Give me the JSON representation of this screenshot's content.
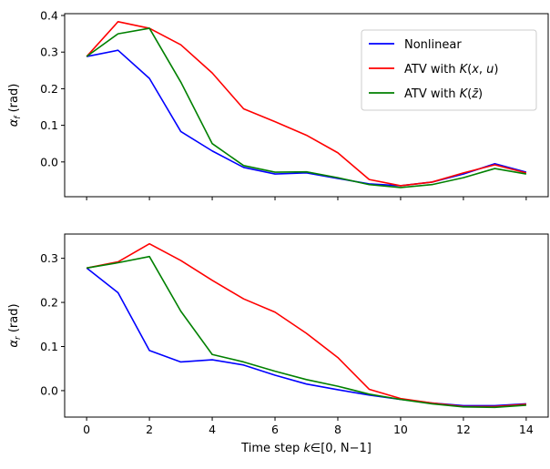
{
  "chart_data": [
    {
      "type": "line",
      "ylabel_main": "α",
      "ylabel_sub": "f",
      "ylabel_unit": " (rad)",
      "xlim": [
        -0.7,
        14.7
      ],
      "ylim": [
        -0.095,
        0.405
      ],
      "x": [
        0,
        1,
        2,
        3,
        4,
        5,
        6,
        7,
        8,
        9,
        10,
        11,
        12,
        13,
        14
      ],
      "xticks": [
        "0",
        "2",
        "4",
        "6",
        "8",
        "10",
        "12",
        "14"
      ],
      "yticks": [
        "0.0",
        "0.1",
        "0.2",
        "0.3",
        "0.4"
      ],
      "ytick_values": [
        0.0,
        0.1,
        0.2,
        0.3,
        0.4
      ],
      "legend_position": "upper right",
      "series": [
        {
          "name_parts": [
            "Nonlinear"
          ],
          "color": "#0000ff",
          "values": [
            0.288,
            0.305,
            0.228,
            0.083,
            0.03,
            -0.015,
            -0.033,
            -0.03,
            -0.045,
            -0.06,
            -0.065,
            -0.055,
            -0.033,
            -0.005,
            -0.028
          ]
        },
        {
          "name_parts": [
            "ATV with ",
            "K",
            "(",
            "x",
            ", ",
            "u",
            ")"
          ],
          "color": "#ff0000",
          "values": [
            0.288,
            0.383,
            0.365,
            0.32,
            0.243,
            0.145,
            0.11,
            0.073,
            0.025,
            -0.048,
            -0.065,
            -0.055,
            -0.03,
            -0.008,
            -0.03
          ]
        },
        {
          "name_parts": [
            "ATV with ",
            "K",
            "(",
            "z̄",
            ")"
          ],
          "color": "#008000",
          "values": [
            0.288,
            0.35,
            0.365,
            0.218,
            0.05,
            -0.01,
            -0.028,
            -0.027,
            -0.043,
            -0.062,
            -0.07,
            -0.062,
            -0.043,
            -0.018,
            -0.033
          ]
        }
      ]
    },
    {
      "type": "line",
      "ylabel_main": "α",
      "ylabel_sub": "r",
      "ylabel_unit": " (rad)",
      "xlabel_prefix": "Time step ",
      "xlabel_var": "k",
      "xlabel_mid": "∈",
      "xlabel_range": "[0, N−1]",
      "xlim": [
        -0.7,
        14.7
      ],
      "ylim": [
        -0.06,
        0.355
      ],
      "x": [
        0,
        1,
        2,
        3,
        4,
        5,
        6,
        7,
        8,
        9,
        10,
        11,
        12,
        13,
        14
      ],
      "xticks": [
        "0",
        "2",
        "4",
        "6",
        "8",
        "10",
        "12",
        "14"
      ],
      "yticks": [
        "0.0",
        "0.1",
        "0.2",
        "0.3"
      ],
      "ytick_values": [
        0.0,
        0.1,
        0.2,
        0.3
      ],
      "series": [
        {
          "color": "#0000ff",
          "values": [
            0.278,
            0.222,
            0.091,
            0.065,
            0.07,
            0.058,
            0.035,
            0.015,
            0.002,
            -0.01,
            -0.02,
            -0.028,
            -0.034,
            -0.034,
            -0.03
          ]
        },
        {
          "color": "#ff0000",
          "values": [
            0.278,
            0.292,
            0.333,
            0.295,
            0.25,
            0.208,
            0.178,
            0.13,
            0.075,
            0.003,
            -0.018,
            -0.028,
            -0.036,
            -0.036,
            -0.031
          ]
        },
        {
          "color": "#008000",
          "values": [
            0.278,
            0.29,
            0.304,
            0.18,
            0.082,
            0.065,
            0.044,
            0.025,
            0.01,
            -0.008,
            -0.02,
            -0.03,
            -0.037,
            -0.038,
            -0.033
          ]
        }
      ]
    }
  ]
}
